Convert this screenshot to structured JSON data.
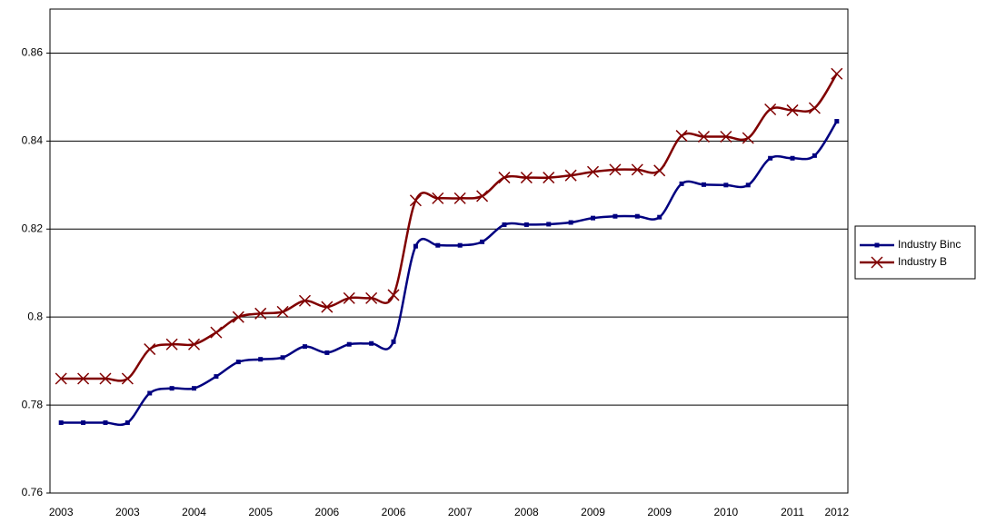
{
  "chart_data": {
    "type": "line",
    "categories": [
      "2003",
      null,
      null,
      "2003",
      null,
      null,
      "2004",
      null,
      null,
      "2005",
      null,
      null,
      "2006",
      null,
      null,
      "2006",
      null,
      null,
      "2007",
      null,
      null,
      "2008",
      null,
      null,
      "2009",
      null,
      null,
      "2009",
      null,
      null,
      "2010",
      null,
      null,
      "2011",
      null,
      "2012"
    ],
    "series": [
      {
        "name": "Industry Binc",
        "color": "#000080",
        "marker": "square",
        "values": [
          0.776,
          0.776,
          0.776,
          0.776,
          0.7827,
          0.7838,
          0.7838,
          0.7865,
          0.7898,
          0.7904,
          0.7908,
          0.7933,
          0.7919,
          0.7938,
          0.794,
          0.7944,
          0.8161,
          0.8163,
          0.8163,
          0.8171,
          0.821,
          0.821,
          0.8211,
          0.8215,
          0.8225,
          0.8229,
          0.8229,
          0.8227,
          0.8303,
          0.8301,
          0.83,
          0.83,
          0.8361,
          0.8361,
          0.8367,
          0.8445
        ]
      },
      {
        "name": "Industry B",
        "color": "#800000",
        "marker": "x",
        "values": [
          0.786,
          0.786,
          0.786,
          0.786,
          0.7927,
          0.7938,
          0.7938,
          0.7965,
          0.8,
          0.8008,
          0.8012,
          0.8037,
          0.8023,
          0.8043,
          0.8043,
          0.805,
          0.8265,
          0.827,
          0.827,
          0.8275,
          0.8317,
          0.8317,
          0.8317,
          0.8322,
          0.833,
          0.8335,
          0.8335,
          0.8333,
          0.8412,
          0.841,
          0.841,
          0.8407,
          0.8472,
          0.847,
          0.8475,
          0.8553
        ]
      }
    ],
    "ylim": [
      0.76,
      0.87
    ],
    "yticks": [
      0.76,
      0.78,
      0.8,
      0.82,
      0.84,
      0.86
    ],
    "grid": true,
    "smooth": true,
    "legend": "right"
  }
}
